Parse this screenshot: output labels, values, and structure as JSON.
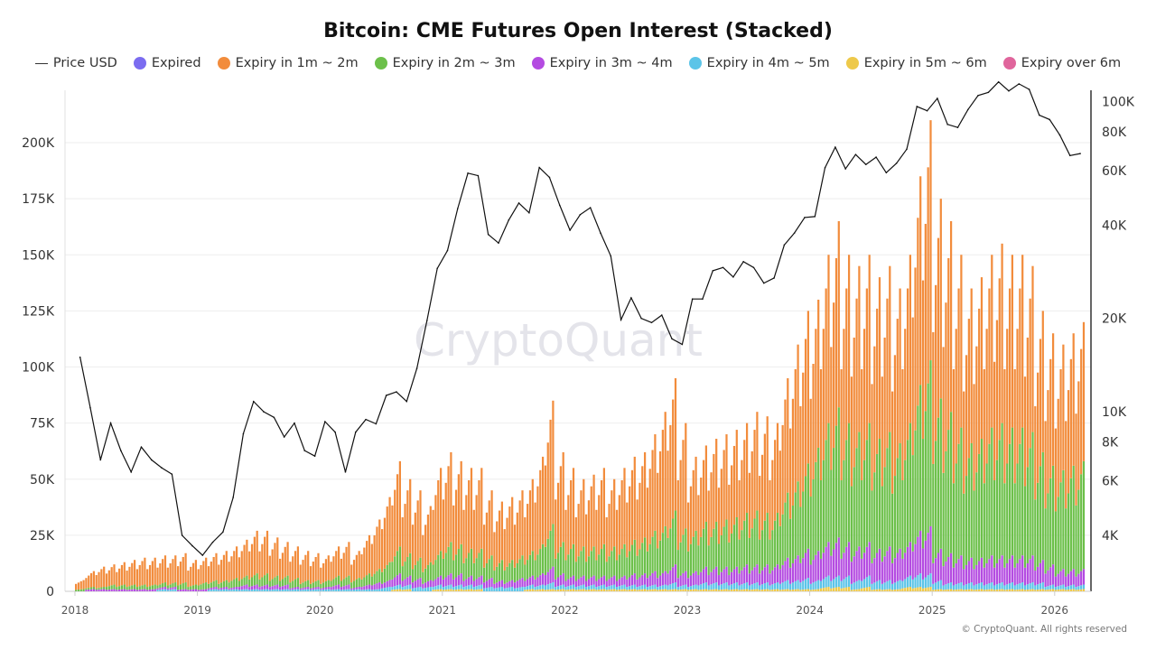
{
  "chart_data": {
    "type": "bar",
    "stacked": true,
    "title": "Bitcoin: CME Futures Open Interest (Stacked)",
    "x_ticks": [
      "2018",
      "2019",
      "2020",
      "2021",
      "2022",
      "2023",
      "2024",
      "2025",
      "2026"
    ],
    "x_start": "2018-01",
    "x_end": "2026-03",
    "x_interval": "month",
    "y_left": {
      "ticks": [
        "0",
        "25K",
        "50K",
        "75K",
        "100K",
        "125K",
        "150K",
        "175K",
        "200K"
      ],
      "tick_values": [
        0,
        25000,
        50000,
        75000,
        100000,
        125000,
        150000,
        175000,
        200000
      ],
      "range": [
        0,
        220000
      ],
      "unit_multiplier": 1000
    },
    "y_right": {
      "scale": "log",
      "ticks": [
        "4K",
        "6K",
        "8K",
        "10K",
        "20K",
        "40K",
        "60K",
        "80K",
        "100K"
      ],
      "tick_values": [
        4000,
        6000,
        8000,
        10000,
        20000,
        40000,
        60000,
        80000,
        100000
      ],
      "range": [
        2640,
        147000
      ]
    },
    "grid": "horizontal",
    "legend_placement": "top",
    "watermark": "CryptoQuant",
    "footer": "© CryptoQuant. All rights reserved",
    "price_line": {
      "name": "Price USD",
      "color": "#111111",
      "axis": "right",
      "values": [
        15000,
        10300,
        7000,
        9200,
        7500,
        6400,
        7700,
        7000,
        6600,
        6300,
        4000,
        3700,
        3450,
        3800,
        4100,
        5300,
        8500,
        10800,
        10000,
        9600,
        8300,
        9200,
        7500,
        7200,
        9300,
        8600,
        6400,
        8600,
        9450,
        9150,
        11300,
        11600,
        10800,
        13800,
        19700,
        29000,
        33100,
        45200,
        58800,
        57700,
        37300,
        35000,
        41500,
        47100,
        43800,
        61300,
        57000,
        46300,
        38500,
        43200,
        45500,
        37700,
        31800,
        19800,
        23300,
        20000,
        19400,
        20500,
        17200,
        16500,
        23100,
        23100,
        28500,
        29200,
        27200,
        30500,
        29200,
        26000,
        27000,
        34500,
        37700,
        42300,
        42600,
        61200,
        71300,
        60700,
        67500,
        62700,
        66200,
        59000,
        63300,
        70200,
        96400,
        93400,
        102400,
        84400,
        82500,
        94200,
        104600,
        107100,
        115700,
        108200,
        114000,
        109500,
        90400,
        87500,
        78000,
        67000,
        68000
      ]
    },
    "series": [
      {
        "name": "Expired",
        "color": "#7b6cf0",
        "values": null
      },
      {
        "name": "Expiry in 1m ~ 2m",
        "color": "#f28c3c",
        "values": [
          4,
          7,
          9,
          9,
          10,
          11,
          12,
          12,
          12,
          12,
          13,
          11,
          11,
          12,
          13,
          14,
          16,
          19,
          19,
          17,
          15,
          14,
          13,
          12,
          11,
          13,
          15,
          12,
          17,
          22,
          29,
          38,
          33,
          30,
          25,
          37,
          40,
          37,
          36,
          36,
          29,
          26,
          28,
          29,
          32,
          39,
          55,
          40,
          34,
          30,
          32,
          34,
          30,
          34,
          37,
          38,
          43,
          51,
          59,
          47,
          33,
          34,
          37,
          38,
          39,
          40,
          44,
          43,
          40,
          51,
          61,
          68,
          66,
          75,
          83,
          75,
          74,
          75,
          72,
          74,
          69,
          75,
          93,
          107,
          89,
          85,
          77,
          69,
          72,
          77,
          80,
          77,
          77,
          74,
          63,
          59,
          56,
          59,
          62
        ]
      },
      {
        "name": "Expiry in 2m ~ 3m",
        "color": "#6cc04a",
        "values": [
          1,
          1,
          1,
          2,
          2,
          2,
          2,
          2,
          2,
          2,
          3,
          2,
          3,
          3,
          3,
          4,
          4,
          5,
          5,
          4,
          4,
          4,
          3,
          3,
          3,
          4,
          4,
          4,
          5,
          6,
          8,
          12,
          10,
          9,
          8,
          11,
          14,
          13,
          12,
          12,
          10,
          9,
          9,
          10,
          11,
          13,
          19,
          14,
          14,
          13,
          13,
          14,
          13,
          14,
          15,
          16,
          18,
          20,
          24,
          19,
          18,
          20,
          20,
          21,
          22,
          23,
          24,
          23,
          23,
          29,
          33,
          38,
          46,
          53,
          58,
          53,
          51,
          53,
          49,
          51,
          47,
          53,
          65,
          74,
          67,
          63,
          57,
          51,
          53,
          57,
          59,
          57,
          57,
          55,
          48,
          44,
          44,
          46,
          48
        ]
      },
      {
        "name": "Expiry in 3m ~ 4m",
        "color": "#b44be1",
        "values": [
          0,
          1,
          1,
          1,
          1,
          1,
          1,
          1,
          1,
          1,
          1,
          1,
          1,
          1,
          1,
          1,
          2,
          2,
          2,
          2,
          2,
          1,
          1,
          1,
          1,
          2,
          2,
          1,
          2,
          3,
          3,
          5,
          4,
          4,
          3,
          4,
          5,
          5,
          4,
          4,
          4,
          3,
          3,
          4,
          4,
          5,
          7,
          5,
          4,
          4,
          4,
          4,
          4,
          4,
          5,
          5,
          6,
          6,
          8,
          6,
          6,
          7,
          7,
          7,
          7,
          8,
          8,
          8,
          8,
          10,
          11,
          13,
          13,
          15,
          17,
          15,
          15,
          15,
          14,
          15,
          14,
          15,
          19,
          21,
          14,
          13,
          12,
          11,
          11,
          12,
          12,
          12,
          12,
          12,
          10,
          9,
          7,
          7,
          7
        ]
      },
      {
        "name": "Expiry in 4m ~ 5m",
        "color": "#5bc4e8",
        "values": [
          0,
          0,
          0,
          0,
          0,
          0,
          0,
          0,
          1,
          1,
          0,
          0,
          0,
          1,
          1,
          1,
          1,
          1,
          1,
          1,
          1,
          1,
          1,
          1,
          1,
          1,
          1,
          1,
          1,
          1,
          2,
          2,
          2,
          2,
          2,
          2,
          2,
          2,
          2,
          2,
          2,
          2,
          2,
          2,
          2,
          2,
          3,
          2,
          2,
          2,
          2,
          2,
          2,
          2,
          2,
          2,
          2,
          2,
          3,
          2,
          2,
          3,
          3,
          3,
          3,
          3,
          3,
          3,
          3,
          4,
          4,
          5,
          4,
          5,
          5,
          5,
          4,
          5,
          4,
          4,
          4,
          5,
          6,
          6,
          4,
          3,
          3,
          3,
          3,
          3,
          3,
          3,
          3,
          3,
          3,
          2,
          2,
          2,
          2
        ]
      },
      {
        "name": "Expiry in 5m ~ 6m",
        "color": "#eec94a",
        "values": [
          0,
          0,
          0,
          0,
          0,
          0,
          0,
          0,
          0,
          0,
          0,
          0,
          0,
          0,
          0,
          0,
          0,
          0,
          0,
          0,
          0,
          0,
          0,
          0,
          0,
          0,
          0,
          0,
          0,
          0,
          0,
          1,
          1,
          0,
          0,
          1,
          1,
          1,
          1,
          1,
          0,
          0,
          0,
          0,
          1,
          1,
          1,
          1,
          1,
          1,
          1,
          1,
          1,
          1,
          1,
          1,
          1,
          1,
          1,
          1,
          1,
          1,
          1,
          1,
          1,
          1,
          1,
          1,
          1,
          1,
          1,
          1,
          1,
          2,
          2,
          2,
          1,
          2,
          1,
          1,
          1,
          2,
          2,
          2,
          1,
          1,
          1,
          1,
          1,
          1,
          1,
          1,
          1,
          1,
          1,
          1,
          1,
          1,
          1
        ]
      },
      {
        "name": "Expiry over 6m",
        "color": "#e0659c",
        "values": null
      }
    ]
  }
}
